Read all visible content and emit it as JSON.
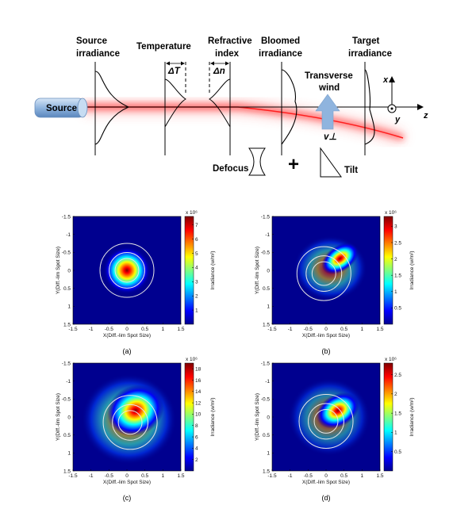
{
  "diagram": {
    "source_box": "Source",
    "labels": {
      "source_irradiance": [
        "Source",
        "irradiance"
      ],
      "temperature": "Temperature",
      "delta_t": "ΔT",
      "refractive_index": [
        "Refractive",
        "index"
      ],
      "delta_n": "Δn",
      "bloomed_irradiance": [
        "Bloomed",
        "irradiance"
      ],
      "transverse_wind": [
        "Transverse",
        "wind"
      ],
      "target_irradiance": [
        "Target",
        "irradiance"
      ],
      "v_perp": "v⊥",
      "defocus": "Defocus",
      "plus": "+",
      "tilt": "Tilt",
      "axis_x": "x",
      "axis_y": "y",
      "axis_z": "z"
    }
  },
  "plots": {
    "x_axis_label": "X(Diff.-lim Spot Size)",
    "y_axis_label": "Y(Diff.-lim Spot Size)",
    "x_ticks": [
      "-1.5",
      "-1",
      "-0.5",
      "0",
      "0.5",
      "1",
      "1.5"
    ],
    "y_ticks": [
      "-1.5",
      "-1",
      "-0.5",
      "0",
      "0.5",
      "1",
      "1.5"
    ],
    "colorbar_label": "Irradiance (w/m²)",
    "colorbar_exponent": "x 10⁶",
    "panels": [
      {
        "caption": "(a)",
        "cb_ticks": [
          "1",
          "2",
          "3",
          "4",
          "5",
          "6",
          "7"
        ],
        "cb_max": 7.6
      },
      {
        "caption": "(b)",
        "cb_ticks": [
          "0.5",
          "1",
          "1.5",
          "2",
          "2.5",
          "3"
        ],
        "cb_max": 3.3
      },
      {
        "caption": "(c)",
        "cb_ticks": [
          "2",
          "4",
          "6",
          "8",
          "10",
          "12",
          "14",
          "16",
          "18"
        ],
        "cb_max": 19
      },
      {
        "caption": "(d)",
        "cb_ticks": [
          "0.5",
          "1",
          "1.5",
          "2",
          "2.5"
        ],
        "cb_max": 2.8
      }
    ]
  }
}
